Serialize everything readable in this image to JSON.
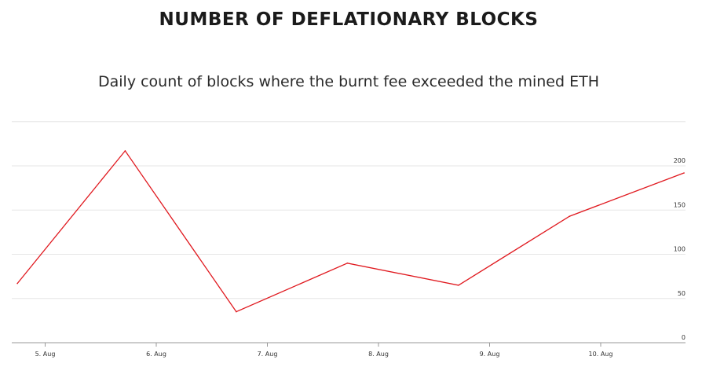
{
  "chart_data": {
    "type": "line",
    "title": "NUMBER OF DEFLATIONARY BLOCKS",
    "subtitle": "Daily count of blocks where the burnt fee exceeded the mined ETH",
    "xlabel": "",
    "ylabel": "",
    "x_ticks": [
      "5. Aug",
      "6. Aug",
      "7. Aug",
      "8. Aug",
      "9. Aug",
      "10. Aug"
    ],
    "y_ticks": [
      0,
      50,
      100,
      150,
      200
    ],
    "ylim": [
      0,
      250
    ],
    "grid": true,
    "series": [
      {
        "color": "#e0191f",
        "x": [
          4.75,
          5.72,
          6.72,
          7.72,
          8.72,
          9.72,
          10.75
        ],
        "values": [
          67,
          217,
          35,
          90,
          65,
          143,
          192
        ]
      }
    ]
  }
}
